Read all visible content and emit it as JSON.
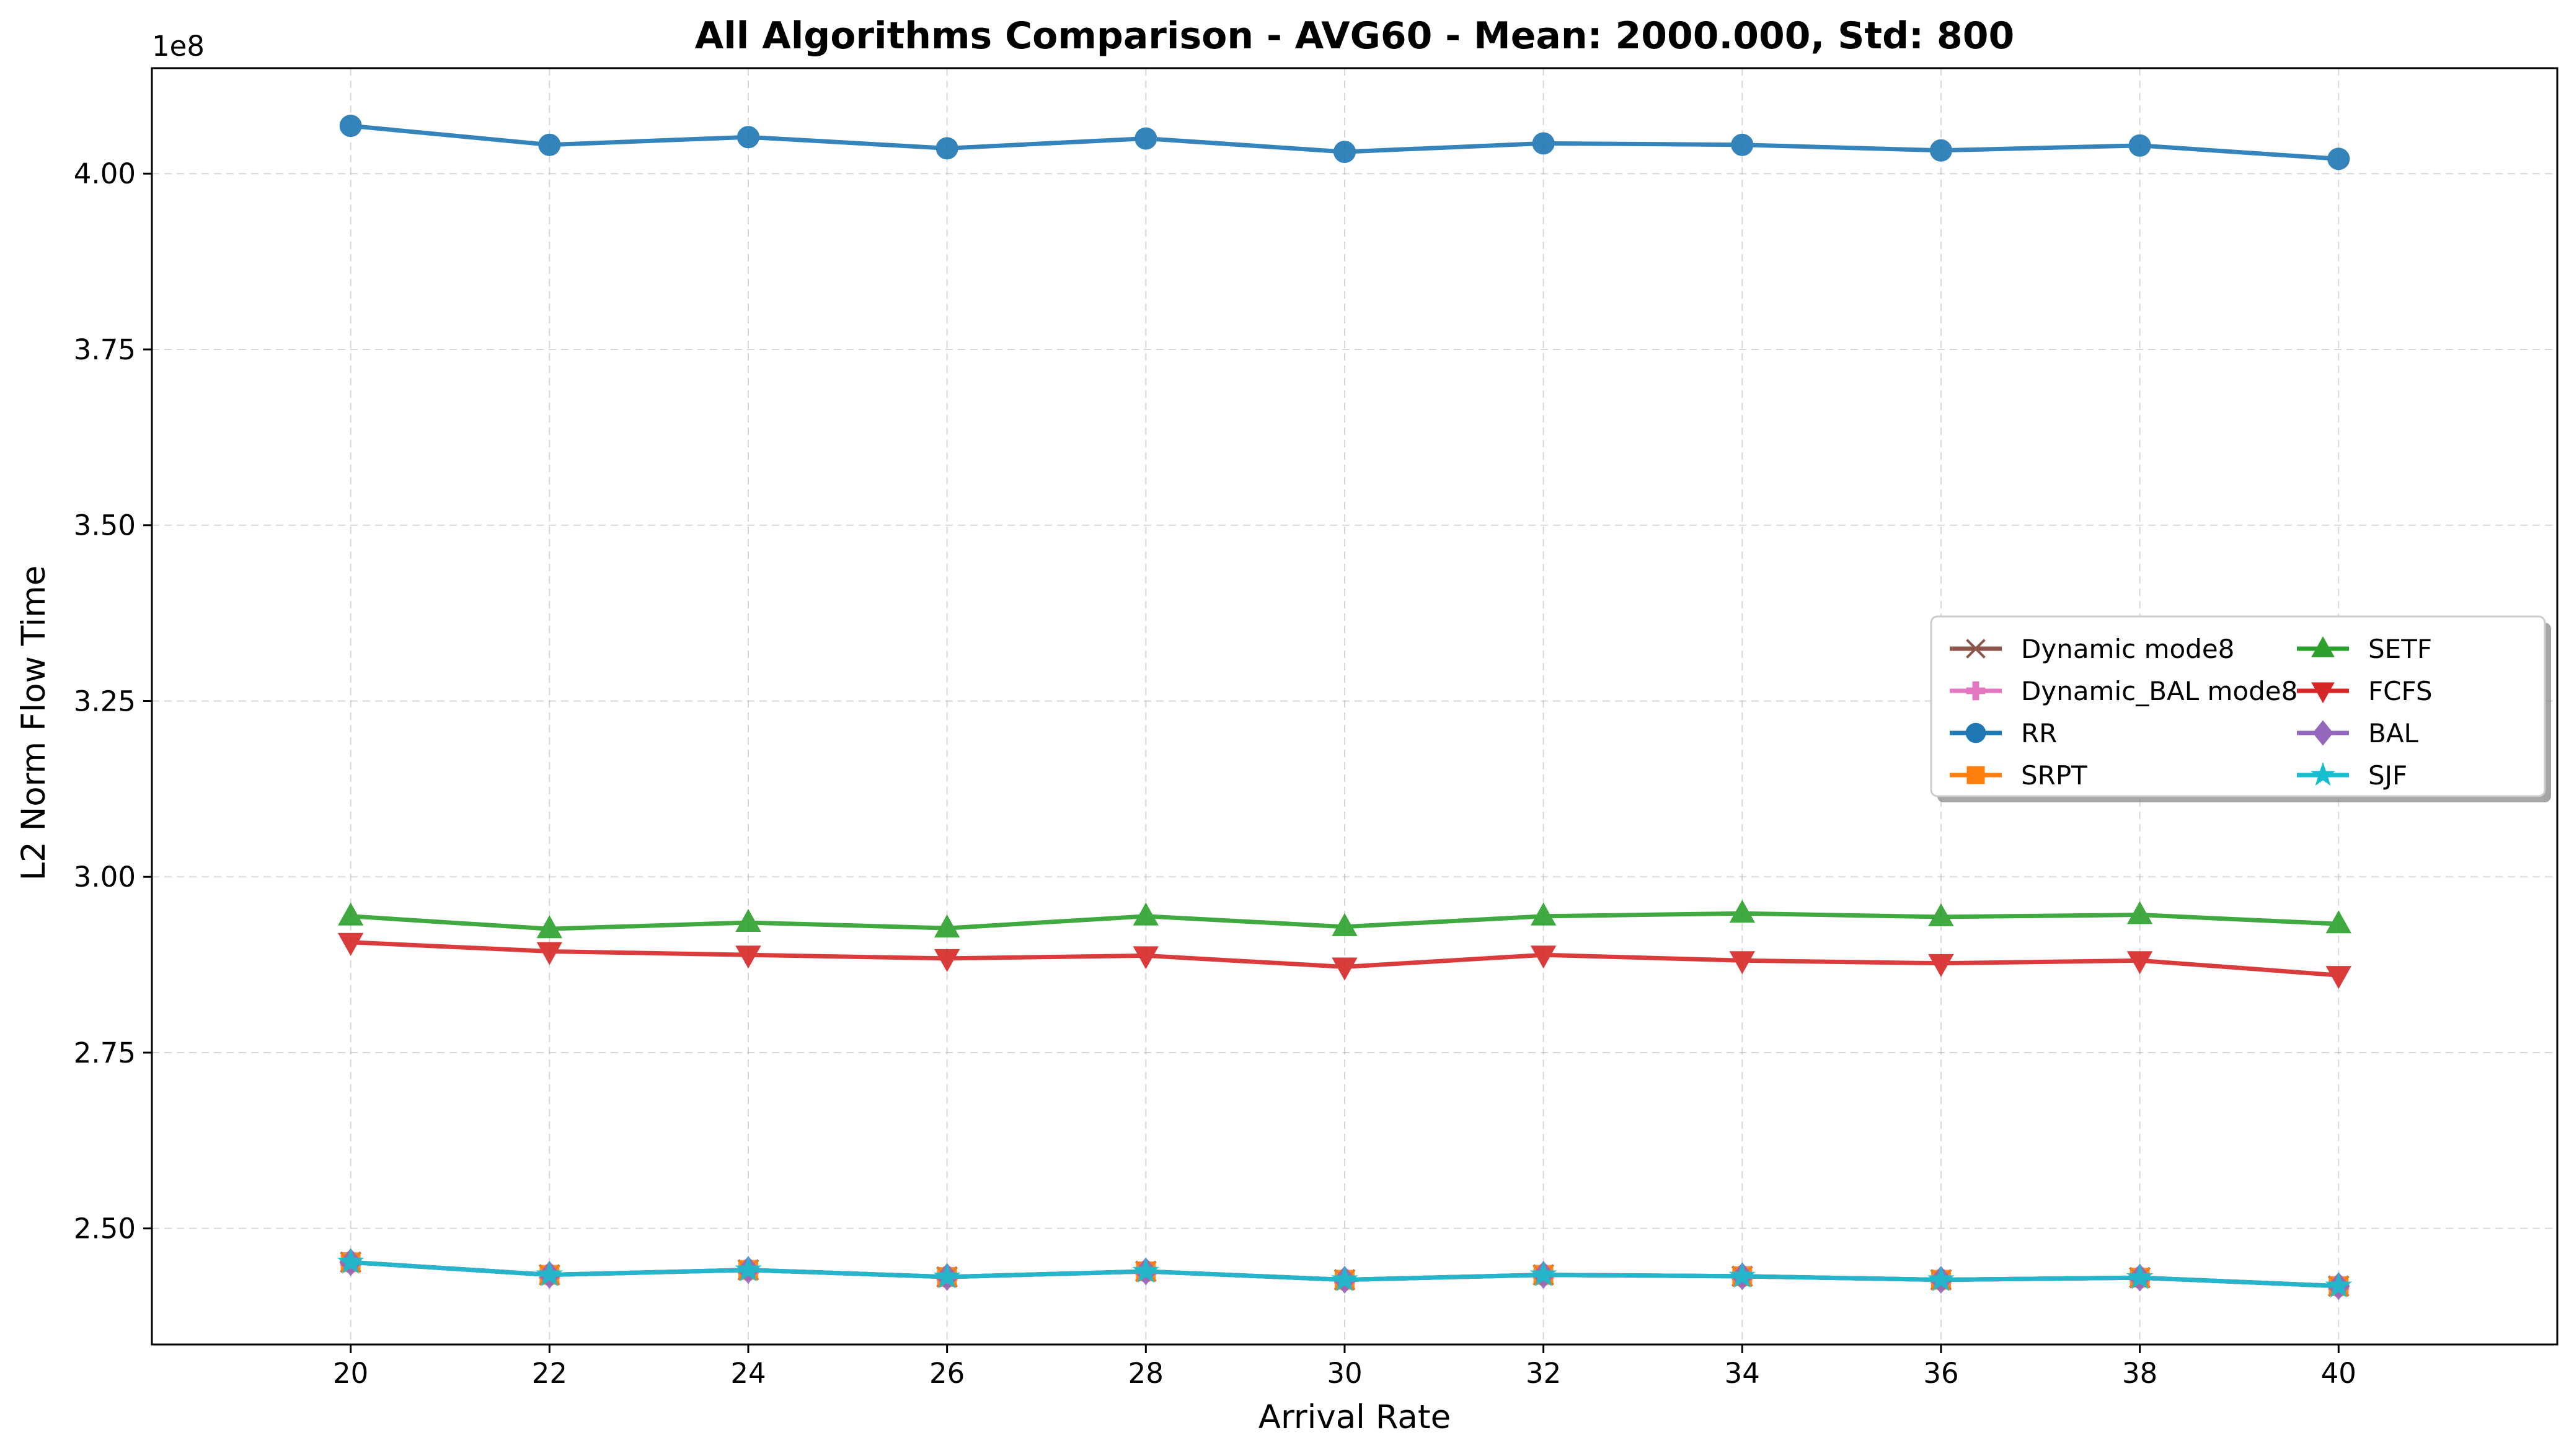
{
  "chart_data": {
    "type": "line",
    "title": "All Algorithms Comparison - AVG60 - Mean: 2000.000, Std: 800",
    "xlabel": "Arrival Rate",
    "ylabel": "L2 Norm Flow Time",
    "y_offset_label": "1e8",
    "y_multiplier": 100000000,
    "xlim": [
      18,
      42.2
    ],
    "ylim": [
      2.335,
      4.15
    ],
    "x_ticks": [
      20,
      22,
      24,
      26,
      28,
      30,
      32,
      34,
      36,
      38,
      40
    ],
    "y_ticks": [
      2.5,
      2.75,
      3.0,
      3.25,
      3.5,
      3.75,
      4.0
    ],
    "y_tick_labels": [
      "2.50",
      "2.75",
      "3.00",
      "3.25",
      "3.50",
      "3.75",
      "4.00"
    ],
    "grid": true,
    "legend_position": "center-right",
    "x": [
      20,
      22,
      24,
      26,
      28,
      30,
      32,
      34,
      36,
      38,
      40
    ],
    "series": [
      {
        "name": "Dynamic mode8",
        "color": "#8c564b",
        "marker": "x",
        "values": [
          2.452,
          2.434,
          2.441,
          2.431,
          2.439,
          2.427,
          2.434,
          2.432,
          2.427,
          2.43,
          2.418
        ]
      },
      {
        "name": "Dynamic_BAL mode8",
        "color": "#e377c2",
        "marker": "plus",
        "values": [
          2.452,
          2.434,
          2.441,
          2.431,
          2.439,
          2.427,
          2.434,
          2.432,
          2.427,
          2.43,
          2.418
        ]
      },
      {
        "name": "RR",
        "color": "#1f77b4",
        "marker": "circle",
        "values": [
          4.068,
          4.041,
          4.052,
          4.036,
          4.05,
          4.031,
          4.043,
          4.041,
          4.033,
          4.04,
          4.021
        ]
      },
      {
        "name": "SRPT",
        "color": "#ff7f0e",
        "marker": "square",
        "values": [
          2.452,
          2.434,
          2.441,
          2.431,
          2.439,
          2.427,
          2.434,
          2.432,
          2.427,
          2.43,
          2.418
        ]
      },
      {
        "name": "SETF",
        "color": "#2ca02c",
        "marker": "triangle-up",
        "values": [
          2.944,
          2.926,
          2.935,
          2.927,
          2.944,
          2.929,
          2.944,
          2.948,
          2.943,
          2.946,
          2.933
        ]
      },
      {
        "name": "FCFS",
        "color": "#d62728",
        "marker": "triangle-down",
        "values": [
          2.907,
          2.894,
          2.889,
          2.884,
          2.888,
          2.872,
          2.889,
          2.881,
          2.877,
          2.881,
          2.86
        ]
      },
      {
        "name": "BAL",
        "color": "#9467bd",
        "marker": "diamond",
        "values": [
          2.452,
          2.434,
          2.441,
          2.431,
          2.439,
          2.427,
          2.434,
          2.432,
          2.427,
          2.43,
          2.418
        ]
      },
      {
        "name": "SJF",
        "color": "#17becf",
        "marker": "star",
        "values": [
          2.452,
          2.434,
          2.441,
          2.431,
          2.439,
          2.427,
          2.434,
          2.432,
          2.427,
          2.43,
          2.418
        ]
      }
    ]
  }
}
